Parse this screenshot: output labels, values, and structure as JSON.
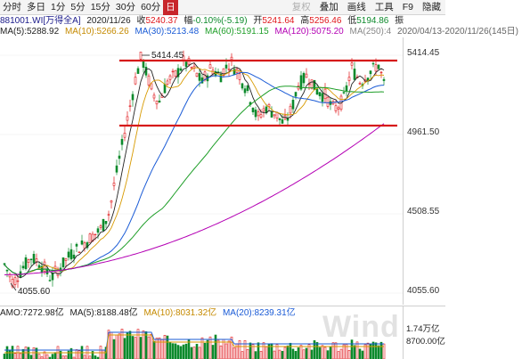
{
  "toolbar": {
    "periods": [
      "分时",
      "多日",
      "1分",
      "5分",
      "15分",
      "30分",
      "60分",
      "日"
    ],
    "active_period": "日",
    "tools": [
      "复权",
      "叠加",
      "画线",
      "工具",
      "F9",
      "隐藏"
    ]
  },
  "header": {
    "code": "881001.WI[万得全A]",
    "date": "2020/11/26",
    "close_label": "收",
    "close": "5240.37",
    "change_label": "幅",
    "change": "-0.10%(-5.19)",
    "open_label": "开",
    "open": "5241.64",
    "high_label": "高",
    "high": "5256.46",
    "low_label": "低",
    "low": "5194.86",
    "amp_label": "振"
  },
  "ma": {
    "ma5": "MA(5):5288.92",
    "ma10": "MA(10):5266.26",
    "ma30": "MA(30):5213.48",
    "ma60": "MA(60):5191.15",
    "ma120": "MA(120):5075.20",
    "ma250": "MA(250):4",
    "range": "2020/04/13-2020/11/26(145日)"
  },
  "yaxis": [
    "5414.45",
    "4961.50",
    "4508.55",
    "4055.60"
  ],
  "annotations": {
    "high_label": "5414.45",
    "low_label": "4055.60"
  },
  "volume": {
    "amo": "AMO:7272.98亿",
    "ma5": "MA(5):8188.48亿",
    "ma10": "MA(10):8031.32亿",
    "ma20": "MA(20):8239.31亿",
    "ytop": "1.74万亿",
    "ymid": "8700.00亿"
  },
  "watermark": "Wind",
  "colors": {
    "up": "#e0171b",
    "down": "#0d8a2c",
    "ma5": "#222222",
    "ma10": "#d89a00",
    "ma30": "#1a5bd6",
    "ma60": "#1e9e28",
    "ma120": "#b400b4",
    "hline": "#d61a1a"
  }
}
